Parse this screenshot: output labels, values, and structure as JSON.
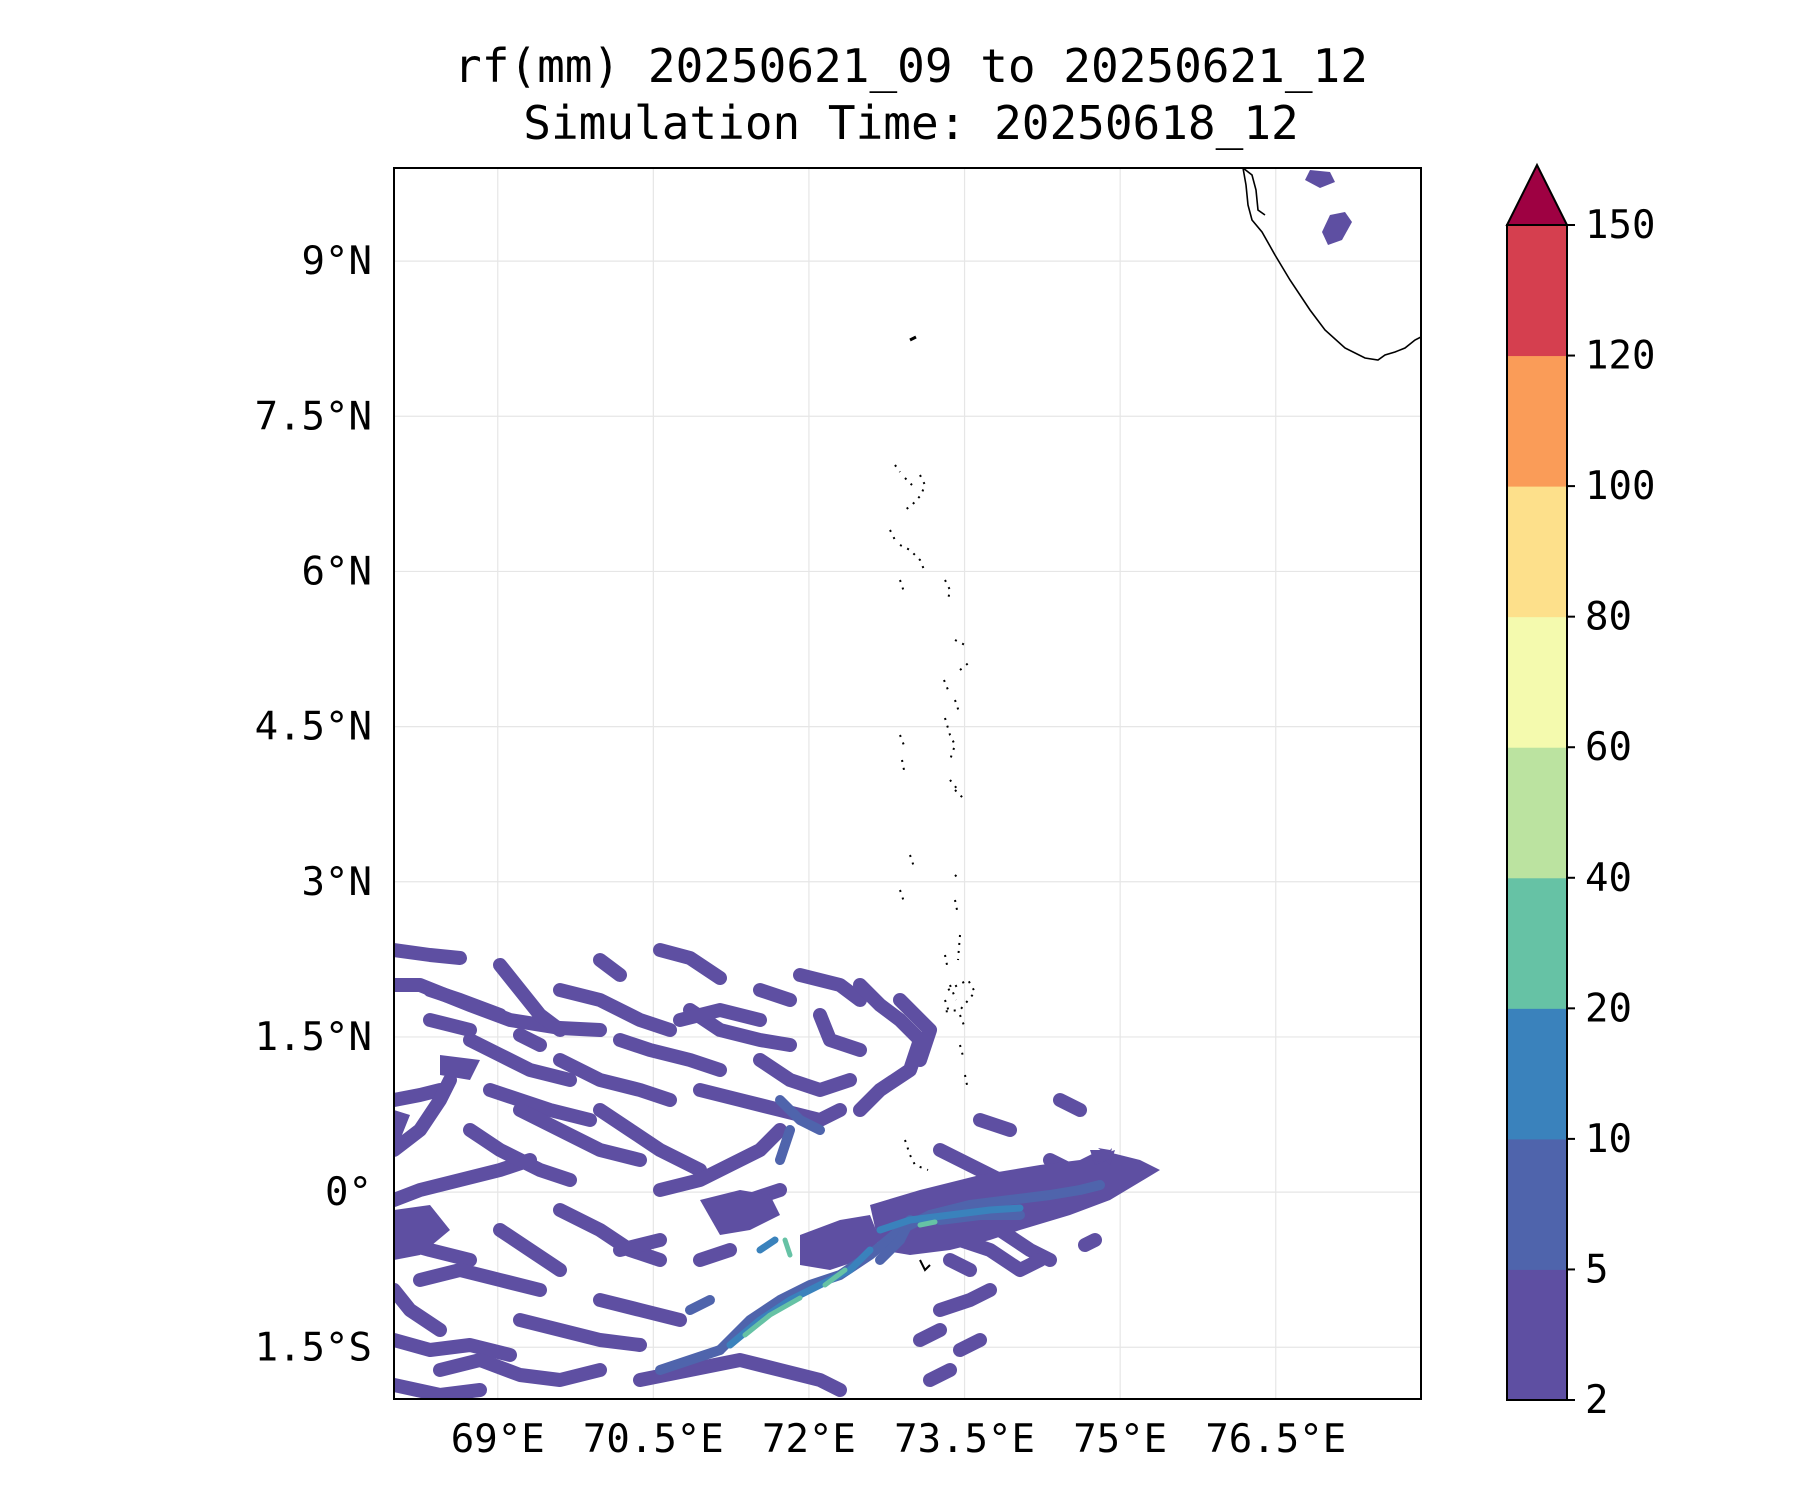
{
  "title": {
    "line1": "rf(mm) 20250621_09 to 20250621_12",
    "line2": "Simulation Time: 20250618_12"
  },
  "map": {
    "lon_range": [
      68.0,
      77.9
    ],
    "lat_range": [
      -2.0,
      9.9
    ],
    "gridlines": true,
    "lon_ticks": [
      {
        "value": 69.0,
        "label": "69°E"
      },
      {
        "value": 70.5,
        "label": "70.5°E"
      },
      {
        "value": 72.0,
        "label": "72°E"
      },
      {
        "value": 73.5,
        "label": "73.5°E"
      },
      {
        "value": 75.0,
        "label": "75°E"
      },
      {
        "value": 76.5,
        "label": "76.5°E"
      }
    ],
    "lat_ticks": [
      {
        "value": 9.0,
        "label": "9°N"
      },
      {
        "value": 7.5,
        "label": "7.5°N"
      },
      {
        "value": 6.0,
        "label": "6°N"
      },
      {
        "value": 4.5,
        "label": "4.5°N"
      },
      {
        "value": 3.0,
        "label": "3°N"
      },
      {
        "value": 1.5,
        "label": "1.5°N"
      },
      {
        "value": 0.0,
        "label": "0°"
      },
      {
        "value": -1.5,
        "label": "1.5°S"
      }
    ]
  },
  "colorbar": {
    "extend": "max",
    "extend_color": "#9e0142",
    "levels": [
      "2",
      "5",
      "10",
      "20",
      "40",
      "60",
      "80",
      "100",
      "120",
      "150"
    ],
    "colors": [
      "#5e4fa2",
      "#4f64ac",
      "#3a82bc",
      "#66c2a5",
      "#bbe3a0",
      "#f4faae",
      "#fde08b",
      "#fa9c58",
      "#d53f4f"
    ]
  }
}
